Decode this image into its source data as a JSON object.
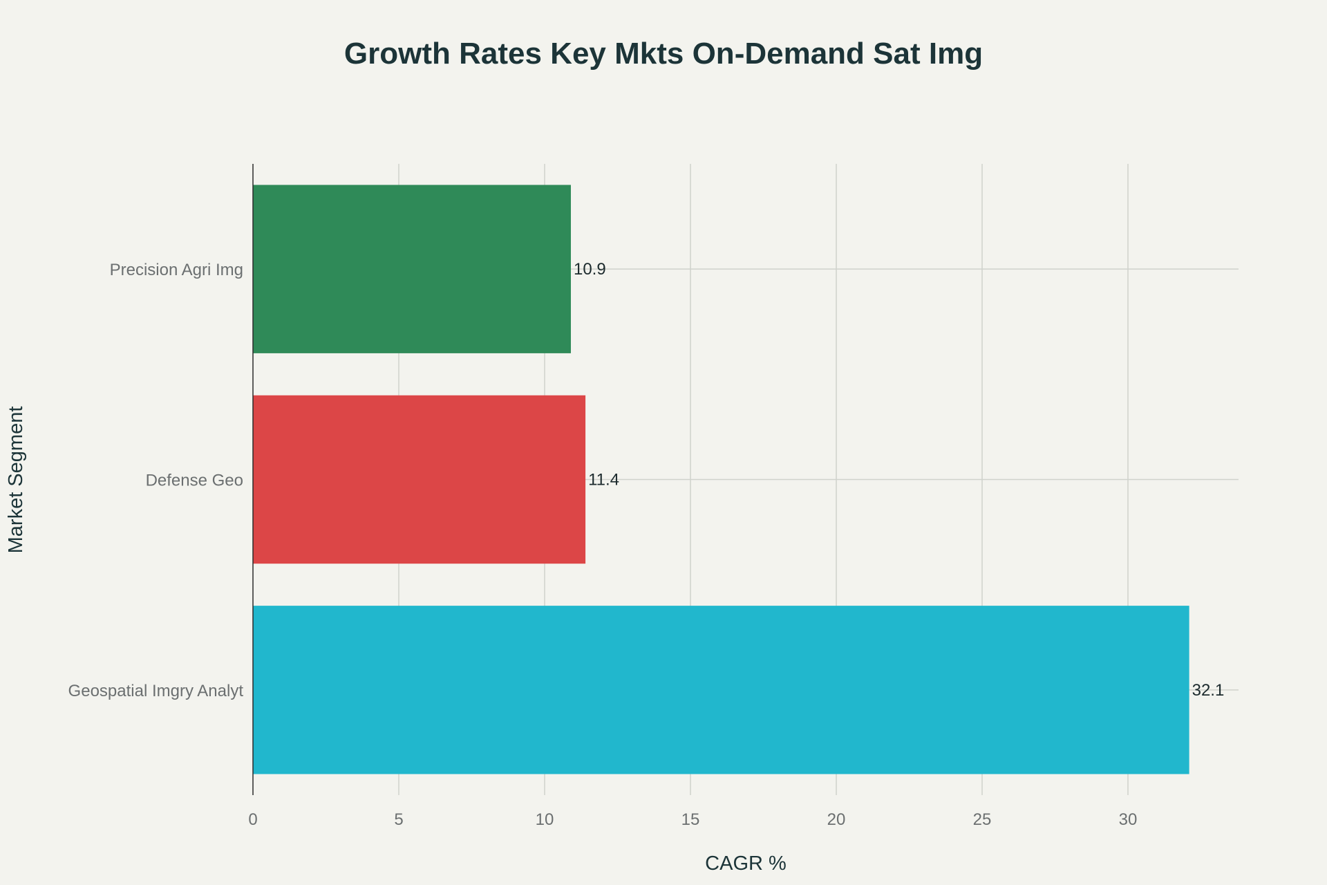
{
  "chart_data": {
    "type": "bar",
    "orientation": "horizontal",
    "title": "Growth Rates Key Mkts On-Demand Sat Img",
    "xlabel": "CAGR %",
    "ylabel": "Market Segment",
    "categories": [
      "Geospatial Imgry Analyt",
      "Defense Geo",
      "Precision Agri Img"
    ],
    "values": [
      32.1,
      11.4,
      10.9
    ],
    "value_labels": [
      "32.1",
      "11.4",
      "10.9"
    ],
    "colors": [
      "#21b7cd",
      "#dc4647",
      "#2f8a58"
    ],
    "xlim": [
      0,
      34
    ],
    "xticks": [
      0,
      5,
      10,
      15,
      20,
      25,
      30
    ],
    "grid": true,
    "legend": "none"
  },
  "colors": {
    "background": "#f3f3ee",
    "title": "#1c3438",
    "grid": "#cfd2cc",
    "tick_text": "#6b6f70"
  }
}
